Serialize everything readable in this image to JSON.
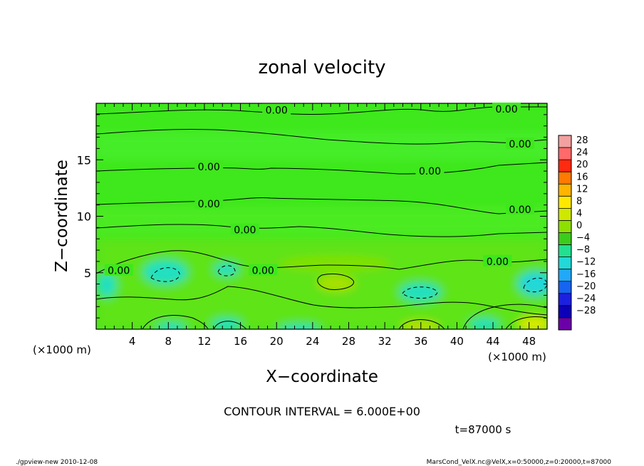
{
  "chart_data": {
    "type": "heatmap",
    "title": "zonal velocity",
    "xlabel": "X−coordinate",
    "ylabel": "Z−coordinate",
    "x_unit_left": "(×1000 m)",
    "x_unit_right": "(×1000 m)",
    "xlim": [
      0,
      50
    ],
    "ylim": [
      0,
      20
    ],
    "x_ticks": [
      4,
      8,
      12,
      16,
      20,
      24,
      28,
      32,
      36,
      40,
      44,
      48
    ],
    "y_ticks": [
      5,
      10,
      15
    ],
    "colorbar": {
      "labels": [
        "28",
        "24",
        "20",
        "16",
        "12",
        "8",
        "4",
        "0",
        "−4",
        "−8",
        "−12",
        "−16",
        "−20",
        "−24",
        "−28"
      ],
      "colors": [
        "#f2a0a0",
        "#ff6a6a",
        "#ff2a10",
        "#ff7a00",
        "#ffb400",
        "#ffe800",
        "#cfe800",
        "#8ee000",
        "#3ccc1c",
        "#22e090",
        "#22d8d8",
        "#22a8f8",
        "#1664f0",
        "#1c20e0",
        "#0c00b8",
        "#6c00a8"
      ]
    },
    "contour_labels": [
      {
        "text": "0.00",
        "x": 20,
        "z": 19.4
      },
      {
        "text": "0.00",
        "x": 45.5,
        "z": 19.5
      },
      {
        "text": "0.00",
        "x": 47,
        "z": 16.4
      },
      {
        "text": "0.00",
        "x": 12.5,
        "z": 14.4
      },
      {
        "text": "0.00",
        "x": 37,
        "z": 14.0
      },
      {
        "text": "0.00",
        "x": 12.5,
        "z": 11.1
      },
      {
        "text": "0.00",
        "x": 47,
        "z": 10.6
      },
      {
        "text": "0.00",
        "x": 16.5,
        "z": 8.8
      },
      {
        "text": "0.00",
        "x": 44.5,
        "z": 6.0
      },
      {
        "text": "0.00",
        "x": 2.5,
        "z": 5.2
      },
      {
        "text": "0.00",
        "x": 18.5,
        "z": 5.2
      }
    ],
    "contour_interval_text": "CONTOUR INTERVAL = 6.000E+00",
    "time_text": "t=87000 s"
  },
  "footer": {
    "left": "./gpview-new  2010-12-08",
    "right": "MarsCond_VelX.nc@VelX,x=0:50000,z=0:20000,t=87000"
  }
}
